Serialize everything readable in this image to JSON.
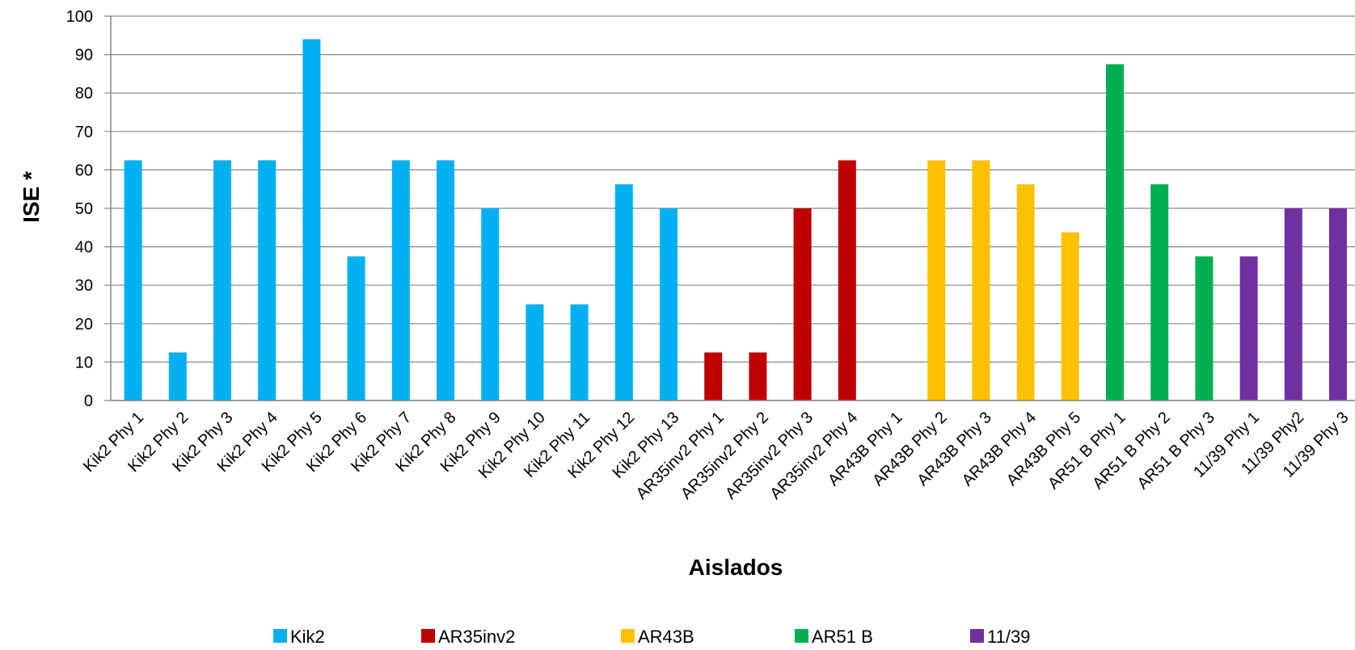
{
  "chart_data": {
    "type": "bar",
    "title": "",
    "xlabel": "Aislados",
    "ylabel": "ISE *",
    "ylim": [
      0,
      100
    ],
    "yticks": [
      0,
      10,
      20,
      30,
      40,
      50,
      60,
      70,
      80,
      90,
      100
    ],
    "grid": true,
    "legend_position": "bottom",
    "categories": [
      "Kik2 Phy 1",
      "Kik2 Phy 2",
      "Kik2 Phy 3",
      "Kik2 Phy 4",
      "Kik2 Phy 5",
      "Kik2 Phy 6",
      "Kik2 Phy 7",
      "Kik2 Phy 8",
      "Kik2 Phy 9",
      "Kik2 Phy 10",
      "Kik2 Phy 11",
      "Kik2 Phy 12",
      "Kik2 Phy 13",
      "AR35inv2 Phy 1",
      "AR35inv2 Phy 2",
      "AR35inv2 Phy 3",
      "AR35inv2 Phy 4",
      "AR43B Phy 1",
      "AR43B Phy 2",
      "AR43B Phy 3",
      "AR43B Phy 4",
      "AR43B Phy 5",
      "AR51 B Phy 1",
      "AR51 B Phy 2",
      "AR51 B Phy 3",
      "11/39 Phy 1",
      "11/39 Phy2",
      "11/39 Phy 3"
    ],
    "values": [
      62.5,
      12.5,
      62.5,
      62.5,
      94,
      37.5,
      62.5,
      62.5,
      50,
      25,
      25,
      56.25,
      50,
      12.5,
      12.5,
      50,
      62.5,
      0,
      62.5,
      62.5,
      56.25,
      43.75,
      87.5,
      56.25,
      37.5,
      37.5,
      50,
      50
    ],
    "groups": [
      0,
      0,
      0,
      0,
      0,
      0,
      0,
      0,
      0,
      0,
      0,
      0,
      0,
      1,
      1,
      1,
      1,
      2,
      2,
      2,
      2,
      2,
      3,
      3,
      3,
      4,
      4,
      4
    ],
    "series": [
      {
        "name": "Kik2",
        "color": "#00B0F0"
      },
      {
        "name": "AR35inv2",
        "color": "#C00000"
      },
      {
        "name": "AR43B",
        "color": "#FFC000"
      },
      {
        "name": "AR51 B",
        "color": "#00B050"
      },
      {
        "name": "11/39",
        "color": "#7030A0"
      }
    ]
  }
}
